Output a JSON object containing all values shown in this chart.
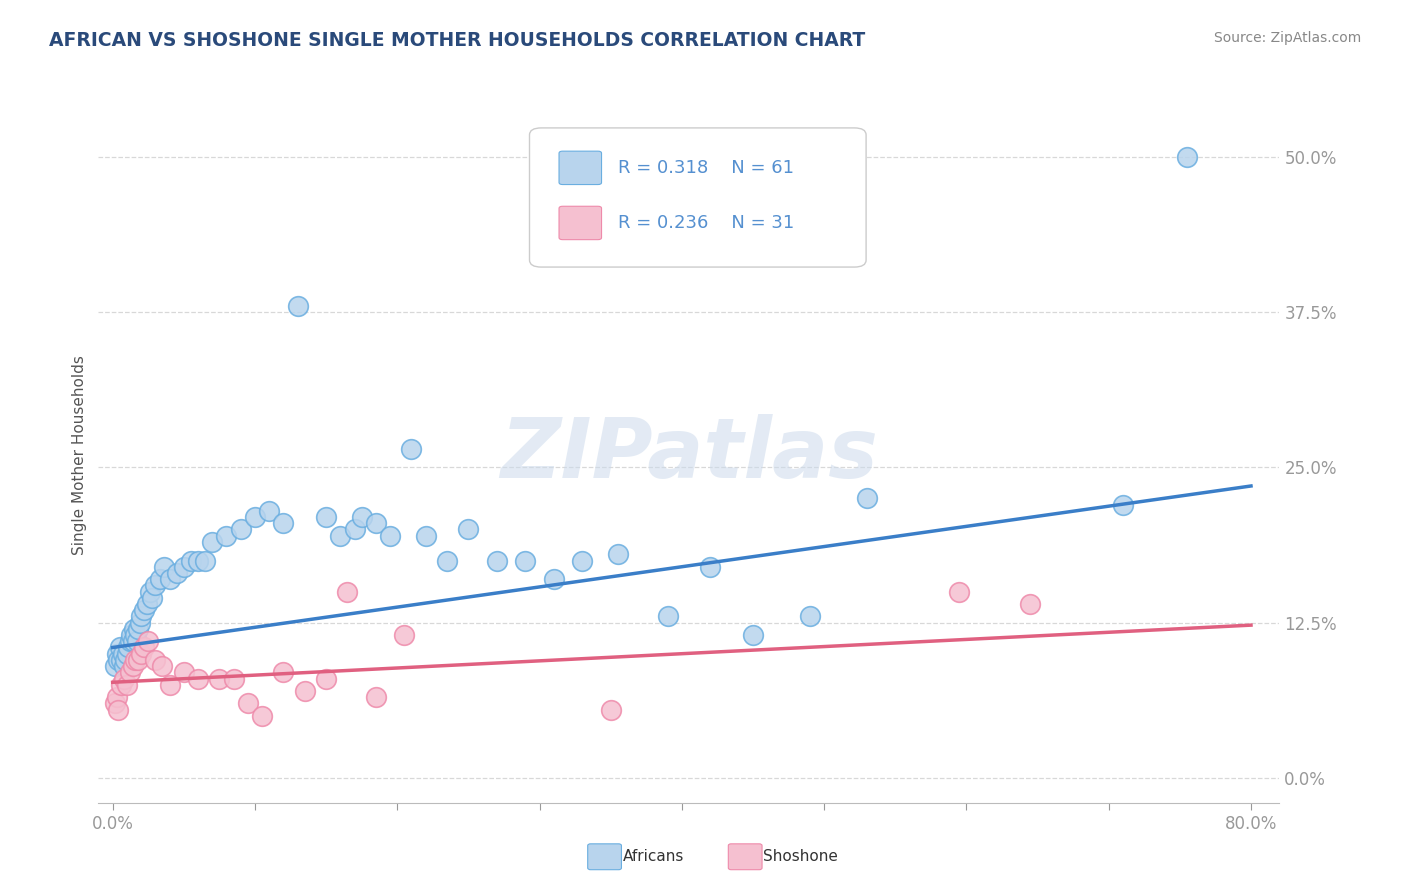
{
  "title": "AFRICAN VS SHOSHONE SINGLE MOTHER HOUSEHOLDS CORRELATION CHART",
  "source": "Source: ZipAtlas.com",
  "ylabel": "Single Mother Households",
  "xlim": [
    -0.01,
    0.82
  ],
  "ylim": [
    -0.02,
    0.54
  ],
  "yticks": [
    0.0,
    0.125,
    0.25,
    0.375,
    0.5
  ],
  "ytick_labels": [
    "0.0%",
    "12.5%",
    "25.0%",
    "37.5%",
    "50.0%"
  ],
  "xticks": [
    0.0,
    0.1,
    0.2,
    0.3,
    0.4,
    0.5,
    0.6,
    0.7,
    0.8
  ],
  "xtick_labels": [
    "0.0%",
    "",
    "",
    "",
    "",
    "",
    "",
    "",
    "80.0%"
  ],
  "african_R": 0.318,
  "african_N": 61,
  "shoshone_R": 0.236,
  "shoshone_N": 31,
  "african_fill": "#b8d4ed",
  "shoshone_fill": "#f5c0d0",
  "african_edge": "#6aaee0",
  "shoshone_edge": "#ee8aaa",
  "african_line": "#3a7ec8",
  "shoshone_line": "#e06080",
  "title_color": "#2a4a7a",
  "tick_color": "#5590d0",
  "source_color": "#888888",
  "ylabel_color": "#555555",
  "bg_color": "#ffffff",
  "grid_color": "#d8d8d8",
  "watermark": "ZIPatlas",
  "legend_border": "#cccccc",
  "africans_x": [
    0.002,
    0.003,
    0.004,
    0.005,
    0.006,
    0.007,
    0.008,
    0.009,
    0.01,
    0.011,
    0.012,
    0.013,
    0.014,
    0.015,
    0.016,
    0.017,
    0.018,
    0.019,
    0.02,
    0.022,
    0.024,
    0.026,
    0.028,
    0.03,
    0.033,
    0.036,
    0.04,
    0.045,
    0.05,
    0.055,
    0.06,
    0.065,
    0.07,
    0.08,
    0.09,
    0.1,
    0.11,
    0.12,
    0.13,
    0.15,
    0.16,
    0.17,
    0.175,
    0.185,
    0.195,
    0.21,
    0.22,
    0.235,
    0.25,
    0.27,
    0.29,
    0.31,
    0.33,
    0.355,
    0.39,
    0.42,
    0.45,
    0.49,
    0.53,
    0.71,
    0.755
  ],
  "africans_y": [
    0.09,
    0.1,
    0.095,
    0.105,
    0.095,
    0.1,
    0.09,
    0.095,
    0.1,
    0.105,
    0.11,
    0.115,
    0.11,
    0.12,
    0.115,
    0.11,
    0.12,
    0.125,
    0.13,
    0.135,
    0.14,
    0.15,
    0.145,
    0.155,
    0.16,
    0.17,
    0.16,
    0.165,
    0.17,
    0.175,
    0.175,
    0.175,
    0.19,
    0.195,
    0.2,
    0.21,
    0.215,
    0.205,
    0.38,
    0.21,
    0.195,
    0.2,
    0.21,
    0.205,
    0.195,
    0.265,
    0.195,
    0.175,
    0.2,
    0.175,
    0.175,
    0.16,
    0.175,
    0.18,
    0.13,
    0.17,
    0.115,
    0.13,
    0.225,
    0.22,
    0.5
  ],
  "shoshone_x": [
    0.002,
    0.003,
    0.004,
    0.006,
    0.008,
    0.01,
    0.012,
    0.014,
    0.016,
    0.018,
    0.02,
    0.022,
    0.025,
    0.03,
    0.035,
    0.04,
    0.05,
    0.06,
    0.075,
    0.085,
    0.095,
    0.105,
    0.12,
    0.135,
    0.15,
    0.165,
    0.185,
    0.205,
    0.35,
    0.595,
    0.645
  ],
  "shoshone_y": [
    0.06,
    0.065,
    0.055,
    0.075,
    0.08,
    0.075,
    0.085,
    0.09,
    0.095,
    0.095,
    0.1,
    0.105,
    0.11,
    0.095,
    0.09,
    0.075,
    0.085,
    0.08,
    0.08,
    0.08,
    0.06,
    0.05,
    0.085,
    0.07,
    0.08,
    0.15,
    0.065,
    0.115,
    0.055,
    0.15,
    0.14
  ],
  "african_trend_x": [
    0.0,
    0.8
  ],
  "african_trend_y": [
    0.105,
    0.235
  ],
  "shoshone_trend_x": [
    0.0,
    0.8
  ],
  "shoshone_trend_y": [
    0.077,
    0.123
  ]
}
